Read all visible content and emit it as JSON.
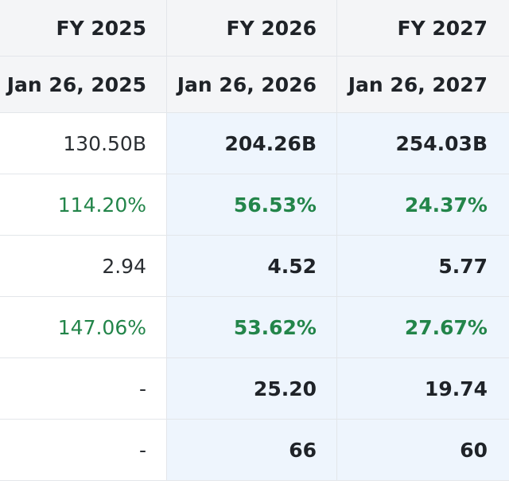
{
  "header": {
    "fiscal_years": [
      "FY 2025",
      "FY 2026",
      "FY 2027"
    ],
    "period_dates": [
      "Jan 26, 2025",
      "Jan 26, 2026",
      "Jan 26, 2027"
    ]
  },
  "rows": [
    {
      "values": [
        "130.50B",
        "204.26B",
        "254.03B"
      ],
      "tone": "neutral"
    },
    {
      "values": [
        "114.20%",
        "56.53%",
        "24.37%"
      ],
      "tone": "positive"
    },
    {
      "values": [
        "2.94",
        "4.52",
        "5.77"
      ],
      "tone": "neutral"
    },
    {
      "values": [
        "147.06%",
        "53.62%",
        "27.67%"
      ],
      "tone": "positive"
    },
    {
      "values": [
        "-",
        "25.20",
        "19.74"
      ],
      "tone": "neutral"
    },
    {
      "values": [
        "-",
        "66",
        "60"
      ],
      "tone": "neutral"
    }
  ],
  "colors": {
    "positive_text": "#23854a",
    "forecast_bg": "#eef5fd",
    "header_bg": "#f4f5f7",
    "grid_line": "#e3e6ea"
  }
}
